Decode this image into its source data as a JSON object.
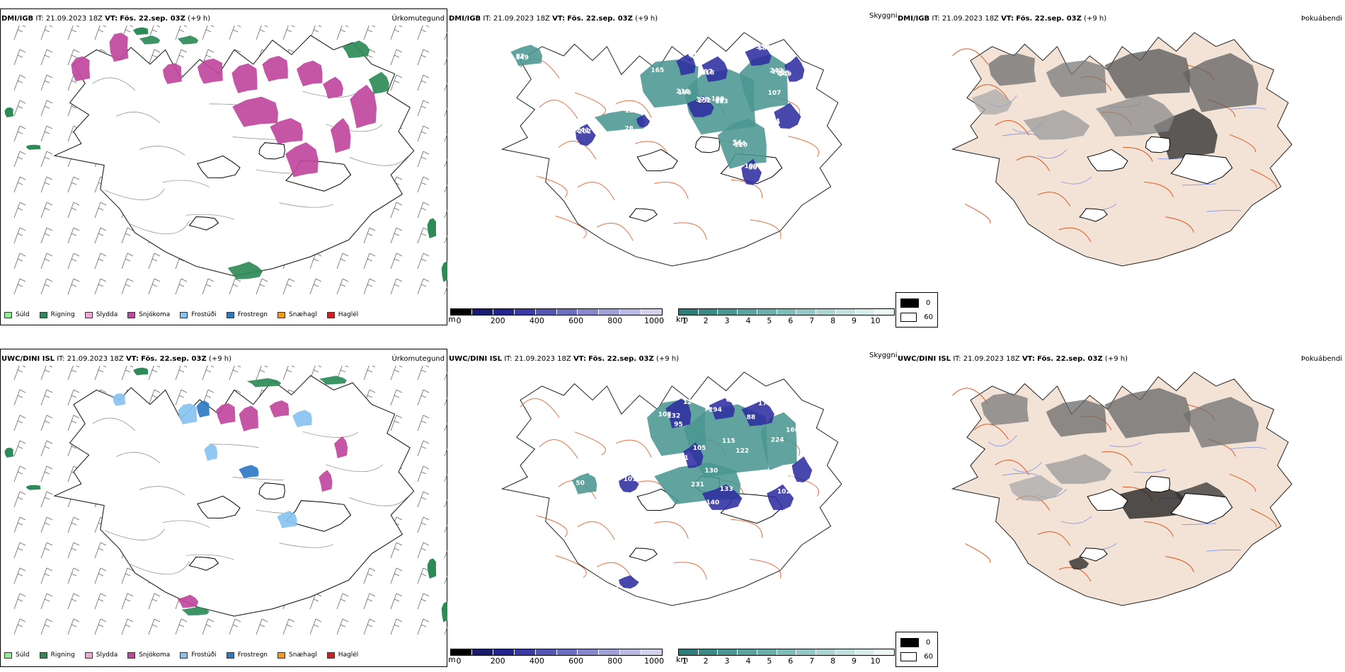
{
  "rows": [
    {
      "model": "DMI/IGB",
      "it_label": "IT:",
      "it_value": "21.09.2023 18Z",
      "vt_label": "VT:",
      "vt_value": "Fös. 22.sep. 03Z",
      "lead": "(+9 h)",
      "precip_title": "Úrkomutegund",
      "cloud_title": "Skyggni",
      "fog_title": "Þokuábendi",
      "cloud_labels": [
        "165",
        "183",
        "166",
        "120",
        "124",
        "149",
        "13",
        "118",
        "188",
        "149",
        "252",
        "76",
        "80",
        "28",
        "202",
        "186",
        "85",
        "242",
        "264",
        "119",
        "82",
        "63",
        "197",
        "353",
        "125",
        "378",
        "261",
        "100",
        "34",
        "241",
        "216",
        "199",
        "107",
        "54",
        "271"
      ]
    },
    {
      "model": "UWC/DINI ISL",
      "it_label": "IT:",
      "it_value": "21.09.2023 18Z",
      "vt_label": "VT:",
      "vt_value": "Fös. 22.sep. 03Z",
      "lead": "(+9 h)",
      "precip_title": "Úrkomutegund",
      "cloud_title": "Skyggni",
      "fog_title": "Þokuábendi",
      "cloud_labels": [
        "108",
        "115",
        "166",
        "231",
        "133",
        "132",
        "62",
        "88",
        "105",
        "140",
        "102",
        "10",
        "101",
        "94",
        "95",
        "122",
        "224",
        "130",
        "50",
        "12",
        "294",
        "177",
        "11",
        "133"
      ]
    }
  ],
  "precip_legend": [
    {
      "label": "Súld",
      "color": "#90ee90"
    },
    {
      "label": "Rigning",
      "color": "#2e8b57"
    },
    {
      "label": "Slydda",
      "color": "#f4a6d7"
    },
    {
      "label": "Snjókoma",
      "color": "#c0489e"
    },
    {
      "label": "Frostúði",
      "color": "#87c3f0"
    },
    {
      "label": "Frostregn",
      "color": "#2f78c4"
    },
    {
      "label": "Snæhagl",
      "color": "#f39c12"
    },
    {
      "label": "Haglél",
      "color": "#e0191f"
    }
  ],
  "ceiling_scale": {
    "unit": "m",
    "ticks": [
      "0",
      "200",
      "400",
      "600",
      "800",
      "1000"
    ],
    "colors": [
      "#000000",
      "#1a1a6e",
      "#24248f",
      "#3a3aa5",
      "#5555b3",
      "#6e6ec0",
      "#8787cb",
      "#a0a0d6",
      "#b9b9e1",
      "#d2d2ec"
    ]
  },
  "visibility_scale": {
    "unit": "km",
    "ticks": [
      "1",
      "2",
      "3",
      "4",
      "5",
      "6",
      "7",
      "8",
      "9",
      "10"
    ],
    "colors": [
      "#2e7d7a",
      "#3b8a86",
      "#4a9692",
      "#5aa39e",
      "#6cafaa",
      "#80bcb7",
      "#95c8c4",
      "#aad5d1",
      "#c0e1de",
      "#d6edeb",
      "#ecf7f6"
    ]
  },
  "fog_legend": [
    {
      "label": "0",
      "color": "#000000"
    },
    {
      "label": "60",
      "color": "#ffffff"
    }
  ],
  "colors": {
    "snow": "#c0489e",
    "rain": "#2e8b57",
    "freezing_drizzle": "#87c3f0",
    "freezing_rain": "#2f78c4",
    "ceiling": "#2e2ea0",
    "visibility": "#4a9692",
    "land_fog": "#f3e3d6",
    "road": "#e2571f",
    "river": "#7e93e8",
    "coast": "#000000"
  }
}
